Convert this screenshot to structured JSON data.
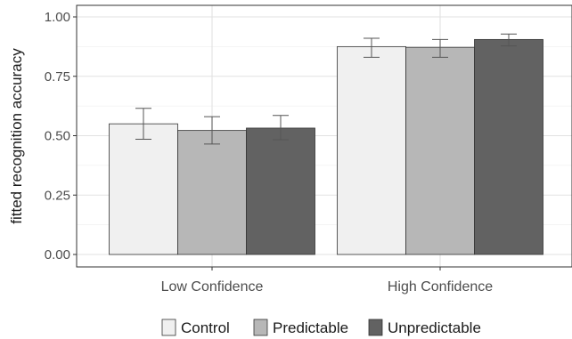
{
  "chart_data": {
    "type": "bar",
    "title": "",
    "xlabel": "",
    "ylabel": "fitted recognition accuracy",
    "ylim": [
      0,
      1.0
    ],
    "yticks": [
      "0.00",
      "0.25",
      "0.50",
      "0.75",
      "1.00"
    ],
    "categories": [
      "Low Confidence",
      "High Confidence"
    ],
    "series": [
      {
        "name": "Control",
        "color": "#f0f0f0",
        "values": [
          0.55,
          0.875
        ],
        "error_low": [
          0.485,
          0.83
        ],
        "error_high": [
          0.615,
          0.91
        ]
      },
      {
        "name": "Predictable",
        "color": "#b7b7b7",
        "values": [
          0.522,
          0.872
        ],
        "error_low": [
          0.465,
          0.83
        ],
        "error_high": [
          0.58,
          0.905
        ]
      },
      {
        "name": "Unpredictable",
        "color": "#626262",
        "values": [
          0.532,
          0.905
        ],
        "error_low": [
          0.483,
          0.878
        ],
        "error_high": [
          0.585,
          0.928
        ]
      }
    ],
    "grid": true,
    "legend_position": "bottom",
    "error_bars": true
  }
}
